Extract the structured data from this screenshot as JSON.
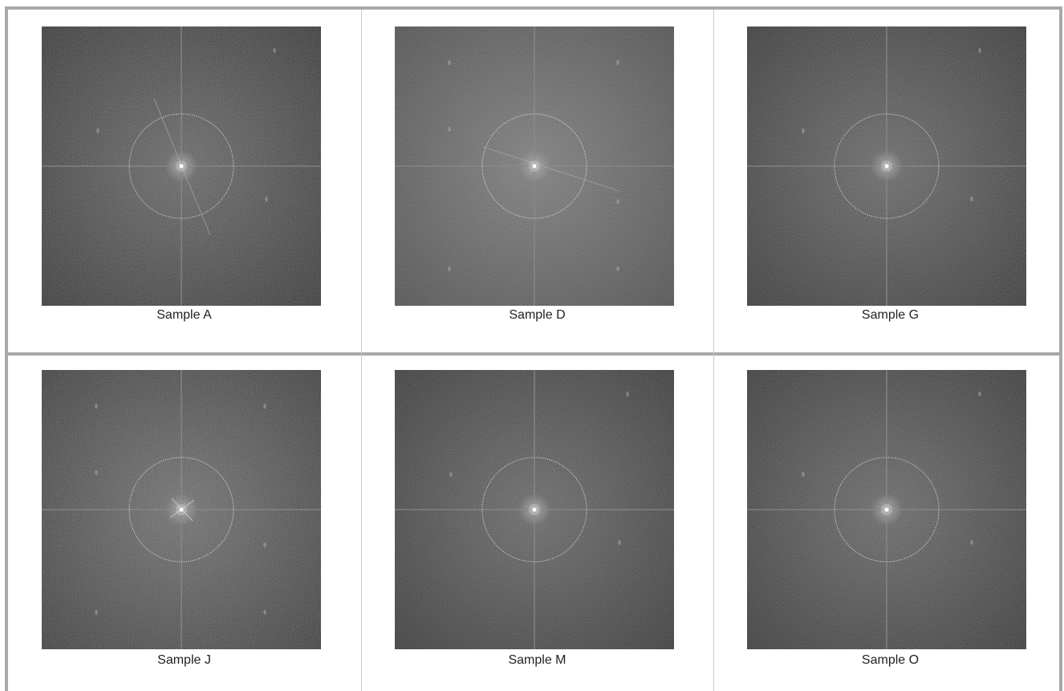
{
  "panels": [
    {
      "caption": "Sample A",
      "tone": "dark",
      "streak": "diag-steep",
      "spots": "few"
    },
    {
      "caption": "Sample D",
      "tone": "light",
      "streak": "diag-shallow",
      "spots": "many"
    },
    {
      "caption": "Sample G",
      "tone": "dark",
      "streak": "none",
      "spots": "few"
    },
    {
      "caption": "Sample J",
      "tone": "mid",
      "streak": "cross-x",
      "spots": "many"
    },
    {
      "caption": "Sample M",
      "tone": "dark",
      "streak": "none",
      "spots": "few"
    },
    {
      "caption": "Sample O",
      "tone": "dark",
      "streak": "faint",
      "spots": "few"
    }
  ],
  "colors": {
    "frame": "#a9a9a9",
    "divider": "#c8c8c8",
    "ring": "#e8e8e8",
    "caption_text": "#222222"
  }
}
